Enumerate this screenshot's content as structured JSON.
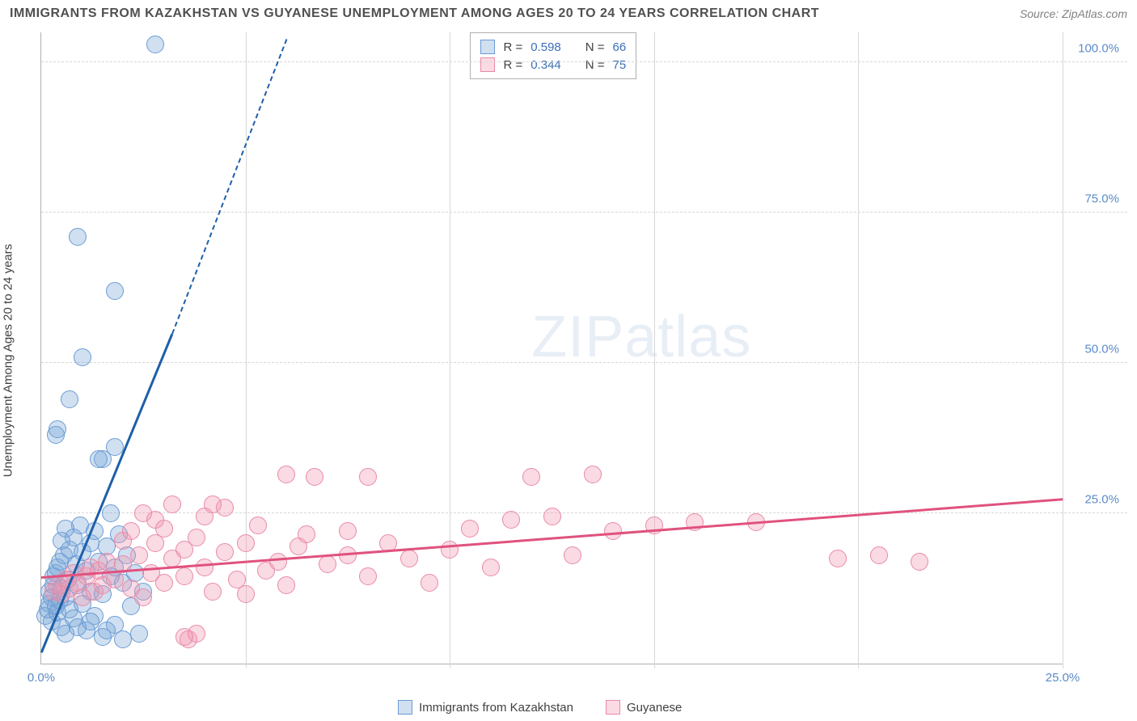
{
  "header": {
    "title": "IMMIGRANTS FROM KAZAKHSTAN VS GUYANESE UNEMPLOYMENT AMONG AGES 20 TO 24 YEARS CORRELATION CHART",
    "source": "Source: ZipAtlas.com"
  },
  "chart": {
    "type": "scatter",
    "y_axis_label": "Unemployment Among Ages 20 to 24 years",
    "xlim": [
      0,
      25
    ],
    "ylim": [
      0,
      105
    ],
    "x_ticks": [
      0.0,
      25.0
    ],
    "x_tick_labels": [
      "0.0%",
      "25.0%"
    ],
    "y_ticks": [
      25.0,
      50.0,
      75.0,
      100.0
    ],
    "y_tick_labels": [
      "25.0%",
      "50.0%",
      "75.0%",
      "100.0%"
    ],
    "x_tick_positions": [
      0,
      5,
      10,
      15,
      20,
      25
    ],
    "background_color": "#ffffff",
    "grid_color": "#d8d8d8",
    "axis_color": "#b0b0b0",
    "tick_label_color": "#5b8bc7",
    "watermark": {
      "zip": "ZIP",
      "atlas": "atlas",
      "color": "#e8eef5",
      "fontsize": 72
    },
    "legend": {
      "series1": {
        "r_label": "R =",
        "r_value": "0.598",
        "n_label": "N =",
        "n_value": "66"
      },
      "series2": {
        "r_label": "R =",
        "r_value": "0.344",
        "n_label": "N =",
        "n_value": "75"
      }
    },
    "bottom_legend": {
      "series1_label": "Immigrants from Kazakhstan",
      "series2_label": "Guyanese"
    },
    "series": [
      {
        "name": "kazakhstan",
        "marker_color_fill": "rgba(120,165,215,0.35)",
        "marker_color_stroke": "#6a9bd4",
        "marker_radius": 11,
        "trend_color": "#1e5fa8",
        "trend_start": [
          0.0,
          2.0
        ],
        "trend_solid_end": [
          3.2,
          55.0
        ],
        "trend_dash_end": [
          6.0,
          104.0
        ],
        "points": [
          [
            0.1,
            8.0
          ],
          [
            0.15,
            9.0
          ],
          [
            0.2,
            10.0
          ],
          [
            0.2,
            12.0
          ],
          [
            0.25,
            7.0
          ],
          [
            0.25,
            11.0
          ],
          [
            0.3,
            13.0
          ],
          [
            0.3,
            14.5
          ],
          [
            0.35,
            9.5
          ],
          [
            0.35,
            15.0
          ],
          [
            0.4,
            8.5
          ],
          [
            0.4,
            16.0
          ],
          [
            0.45,
            10.5
          ],
          [
            0.45,
            17.0
          ],
          [
            0.5,
            12.5
          ],
          [
            0.5,
            6.0
          ],
          [
            0.55,
            18.0
          ],
          [
            0.6,
            11.0
          ],
          [
            0.6,
            5.0
          ],
          [
            0.65,
            14.0
          ],
          [
            0.7,
            19.0
          ],
          [
            0.7,
            9.0
          ],
          [
            0.8,
            21.0
          ],
          [
            0.8,
            7.5
          ],
          [
            0.85,
            16.5
          ],
          [
            0.9,
            13.0
          ],
          [
            0.95,
            23.0
          ],
          [
            1.0,
            10.0
          ],
          [
            1.0,
            18.5
          ],
          [
            1.1,
            15.5
          ],
          [
            1.1,
            5.5
          ],
          [
            1.2,
            12.0
          ],
          [
            1.2,
            20.0
          ],
          [
            1.3,
            8.0
          ],
          [
            1.3,
            22.0
          ],
          [
            1.4,
            17.0
          ],
          [
            1.5,
            11.5
          ],
          [
            1.5,
            4.5
          ],
          [
            1.6,
            19.5
          ],
          [
            1.7,
            14.5
          ],
          [
            1.8,
            6.5
          ],
          [
            1.8,
            16.0
          ],
          [
            1.9,
            21.5
          ],
          [
            2.0,
            13.5
          ],
          [
            2.0,
            4.0
          ],
          [
            2.1,
            18.0
          ],
          [
            2.2,
            9.5
          ],
          [
            2.3,
            15.0
          ],
          [
            2.4,
            5.0
          ],
          [
            2.5,
            12.0
          ],
          [
            0.7,
            44.0
          ],
          [
            0.35,
            38.0
          ],
          [
            0.4,
            39.0
          ],
          [
            1.0,
            51.0
          ],
          [
            1.5,
            34.0
          ],
          [
            1.4,
            34.0
          ],
          [
            1.8,
            36.0
          ],
          [
            0.9,
            71.0
          ],
          [
            1.8,
            62.0
          ],
          [
            2.8,
            103.0
          ],
          [
            1.7,
            25.0
          ],
          [
            0.5,
            20.5
          ],
          [
            0.6,
            22.5
          ],
          [
            0.9,
            6.0
          ],
          [
            1.2,
            7.0
          ],
          [
            1.6,
            5.5
          ]
        ]
      },
      {
        "name": "guyanese",
        "marker_color_fill": "rgba(240,150,175,0.35)",
        "marker_color_stroke": "#e88aa8",
        "marker_radius": 11,
        "trend_color": "#e0527e",
        "trend_start": [
          0.0,
          14.5
        ],
        "trend_solid_end": [
          25.0,
          27.5
        ],
        "points": [
          [
            0.3,
            12.0
          ],
          [
            0.4,
            13.0
          ],
          [
            0.5,
            11.5
          ],
          [
            0.6,
            14.0
          ],
          [
            0.7,
            12.5
          ],
          [
            0.8,
            15.0
          ],
          [
            0.9,
            13.5
          ],
          [
            1.0,
            11.0
          ],
          [
            1.1,
            14.5
          ],
          [
            1.2,
            16.0
          ],
          [
            1.3,
            12.0
          ],
          [
            1.4,
            15.5
          ],
          [
            1.5,
            13.0
          ],
          [
            1.6,
            17.0
          ],
          [
            1.8,
            14.0
          ],
          [
            2.0,
            16.5
          ],
          [
            2.0,
            20.5
          ],
          [
            2.2,
            12.5
          ],
          [
            2.2,
            22.0
          ],
          [
            2.4,
            18.0
          ],
          [
            2.5,
            11.0
          ],
          [
            2.5,
            25.0
          ],
          [
            2.7,
            15.0
          ],
          [
            2.8,
            20.0
          ],
          [
            2.8,
            24.0
          ],
          [
            3.0,
            13.5
          ],
          [
            3.0,
            22.5
          ],
          [
            3.2,
            17.5
          ],
          [
            3.2,
            26.5
          ],
          [
            3.5,
            14.5
          ],
          [
            3.5,
            19.0
          ],
          [
            3.6,
            4.0
          ],
          [
            3.8,
            21.0
          ],
          [
            3.8,
            5.0
          ],
          [
            4.0,
            16.0
          ],
          [
            4.0,
            24.5
          ],
          [
            4.2,
            12.0
          ],
          [
            4.5,
            18.5
          ],
          [
            4.5,
            26.0
          ],
          [
            4.8,
            14.0
          ],
          [
            5.0,
            20.0
          ],
          [
            5.0,
            11.5
          ],
          [
            5.3,
            23.0
          ],
          [
            5.5,
            15.5
          ],
          [
            5.8,
            17.0
          ],
          [
            6.0,
            13.0
          ],
          [
            6.0,
            31.5
          ],
          [
            6.3,
            19.5
          ],
          [
            6.5,
            21.5
          ],
          [
            6.7,
            31.0
          ],
          [
            7.0,
            16.5
          ],
          [
            7.5,
            18.0
          ],
          [
            7.5,
            22.0
          ],
          [
            8.0,
            14.5
          ],
          [
            8.0,
            31.0
          ],
          [
            8.5,
            20.0
          ],
          [
            9.0,
            17.5
          ],
          [
            9.5,
            13.5
          ],
          [
            10.0,
            19.0
          ],
          [
            10.5,
            22.5
          ],
          [
            11.0,
            16.0
          ],
          [
            11.5,
            24.0
          ],
          [
            12.0,
            31.0
          ],
          [
            12.5,
            24.5
          ],
          [
            13.0,
            18.0
          ],
          [
            13.5,
            31.5
          ],
          [
            14.0,
            22.0
          ],
          [
            15.0,
            23.0
          ],
          [
            16.0,
            23.5
          ],
          [
            17.5,
            23.5
          ],
          [
            19.5,
            17.5
          ],
          [
            20.5,
            18.0
          ],
          [
            21.5,
            17.0
          ],
          [
            3.5,
            4.5
          ],
          [
            4.2,
            26.5
          ]
        ]
      }
    ]
  }
}
